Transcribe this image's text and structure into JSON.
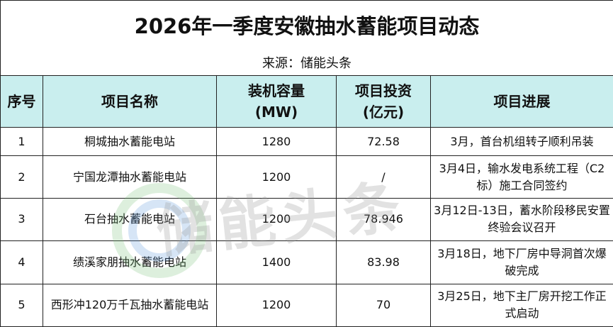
{
  "header": {
    "title": "2026年一季度安徽抽水蓄能项目动态",
    "source": "来源：储能头条"
  },
  "watermark": "储能头条",
  "table": {
    "columns": [
      "序号",
      "项目名称",
      "装机容量\n(MW)",
      "项目投资\n(亿元)",
      "项目进展"
    ],
    "rows": [
      [
        "1",
        "桐城抽水蓄能电站",
        "1280",
        "72.58",
        "3月，首台机组转子顺利吊装"
      ],
      [
        "2",
        "宁国龙潭抽水蓄能电站",
        "1200",
        "/",
        "3月4日，输水发电系统工程（C2标）施工合同签约"
      ],
      [
        "3",
        "石台抽水蓄能电站",
        "1200",
        "78.946",
        "3月12日-13日，蓄水阶段移民安置终验会议召开"
      ],
      [
        "4",
        "绩溪家朋抽水蓄能电站",
        "1400",
        "83.98",
        "3月18日，地下厂房中导洞首次爆破完成"
      ],
      [
        "5",
        "西形冲120万千瓦抽水蓄能电站",
        "1200",
        "70",
        "3月25日，地下主厂房开挖工作正式启动"
      ]
    ]
  }
}
